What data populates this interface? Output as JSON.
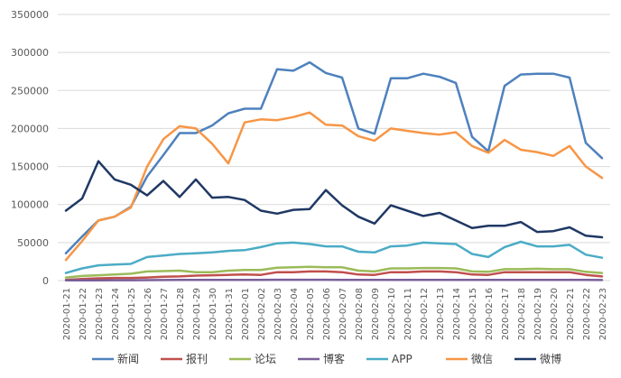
{
  "chart_data": {
    "type": "line",
    "title": "",
    "xlabel": "",
    "ylabel": "",
    "ylim": [
      0,
      350000
    ],
    "yticks": [
      "0",
      "50000",
      "100000",
      "150000",
      "200000",
      "250000",
      "300000",
      "350000"
    ],
    "grid": true,
    "legend_position": "bottom",
    "categories": [
      "2020-01-21",
      "2020-01-22",
      "2020-01-23",
      "2020-01-24",
      "2020-01-25",
      "2020-01-26",
      "2020-01-27",
      "2020-01-28",
      "2020-01-29",
      "2020-01-30",
      "2020-01-31",
      "2020-02-01",
      "2020-02-02",
      "2020-02-03",
      "2020-02-04",
      "2020-02-05",
      "2020-02-06",
      "2020-02-07",
      "2020-02-08",
      "2020-02-09",
      "2020-02-10",
      "2020-02-11",
      "2020-02-12",
      "2020-02-13",
      "2020-02-14",
      "2020-02-15",
      "2020-02-16",
      "2020-02-17",
      "2020-02-18",
      "2020-02-19",
      "2020-02-20",
      "2020-02-21",
      "2020-02-22",
      "2020-02-23"
    ],
    "series": [
      {
        "name": "新闻",
        "color": "#4e81bd",
        "values": [
          36000,
          58000,
          79000,
          84000,
          97000,
          137000,
          165000,
          194000,
          194000,
          204000,
          220000,
          226000,
          226000,
          278000,
          276000,
          287000,
          273000,
          267000,
          200000,
          193000,
          266000,
          266000,
          272000,
          268000,
          260000,
          189000,
          170000,
          256000,
          271000,
          272000,
          272000,
          267000,
          181000,
          161000
        ]
      },
      {
        "name": "报刊",
        "color": "#c0504d",
        "values": [
          1000,
          2000,
          3000,
          3500,
          3500,
          4000,
          5000,
          5500,
          6500,
          7000,
          7500,
          8000,
          7500,
          11000,
          11000,
          12000,
          12000,
          11000,
          8000,
          7500,
          11000,
          11000,
          12000,
          12000,
          11000,
          8000,
          7500,
          11000,
          11000,
          11000,
          11000,
          11000,
          7500,
          5500
        ]
      },
      {
        "name": "论坛",
        "color": "#9bbb59",
        "values": [
          4000,
          6000,
          7000,
          8000,
          9000,
          12000,
          12500,
          13000,
          11000,
          11000,
          13000,
          14000,
          14000,
          17000,
          17500,
          18000,
          17500,
          17500,
          13000,
          12000,
          16000,
          16000,
          16500,
          16500,
          16000,
          12000,
          11500,
          15000,
          15000,
          15500,
          15000,
          15000,
          11500,
          10000
        ]
      },
      {
        "name": "博客",
        "color": "#7a5f99",
        "values": [
          200,
          300,
          400,
          500,
          500,
          600,
          700,
          800,
          800,
          900,
          900,
          1000,
          1000,
          1100,
          1100,
          1100,
          1100,
          1000,
          900,
          900,
          1000,
          1000,
          1000,
          1000,
          1000,
          800,
          800,
          1000,
          1000,
          1000,
          1000,
          1000,
          800,
          700
        ]
      },
      {
        "name": "APP",
        "color": "#4bacc6",
        "values": [
          10000,
          16000,
          20000,
          21000,
          22000,
          31000,
          33000,
          35000,
          36000,
          37000,
          39000,
          40000,
          44000,
          49000,
          50000,
          48000,
          45000,
          45000,
          38000,
          37000,
          45000,
          46000,
          50000,
          49000,
          48000,
          35000,
          31000,
          44000,
          51000,
          45000,
          45000,
          47000,
          34000,
          30000
        ]
      },
      {
        "name": "微信",
        "color": "#f79646",
        "values": [
          27000,
          52000,
          79000,
          84000,
          96000,
          150000,
          186000,
          203000,
          200000,
          180000,
          154000,
          208000,
          212000,
          211000,
          215000,
          221000,
          205000,
          204000,
          190000,
          184000,
          200000,
          197000,
          194000,
          192000,
          195000,
          177000,
          168000,
          185000,
          172000,
          169000,
          164000,
          177000,
          150000,
          135000
        ]
      },
      {
        "name": "微博",
        "color": "#1f3864",
        "values": [
          92000,
          108000,
          157000,
          133000,
          126000,
          112000,
          131000,
          110000,
          133000,
          109000,
          110000,
          106000,
          92000,
          88000,
          93000,
          94000,
          119000,
          99000,
          84000,
          75000,
          99000,
          92000,
          85000,
          89000,
          79000,
          69000,
          72000,
          72000,
          77000,
          64000,
          65000,
          70000,
          59000,
          57000
        ]
      }
    ]
  }
}
